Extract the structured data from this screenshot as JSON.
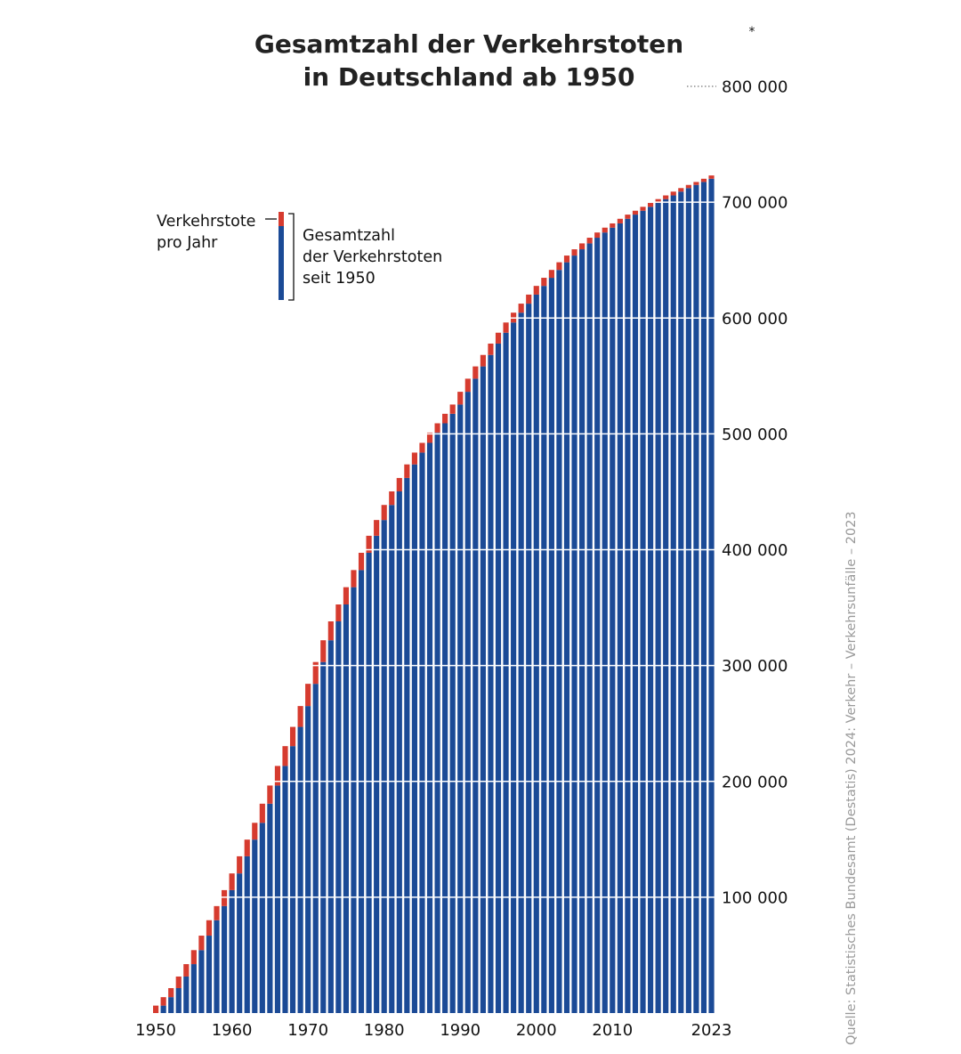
{
  "chart_data": {
    "type": "bar",
    "stacked": true,
    "title_line1": "Gesamtzahl der Verkehrstoten",
    "title_line2": "in Deutschland ab 1950",
    "footnote_mark": "*",
    "x_tick_labels": [
      "1950",
      "1960",
      "1970",
      "1980",
      "1990",
      "2000",
      "2010",
      "2023"
    ],
    "y_tick_labels": [
      "100 000",
      "200 000",
      "300 000",
      "400 000",
      "500 000",
      "600 000",
      "700 000",
      "800 000"
    ],
    "ylim": [
      0,
      800000
    ],
    "grid": true,
    "legend": {
      "annual_label_line1": "Verkehrstote",
      "annual_label_line2": "pro Jahr",
      "cumulative_label_line1": "Gesamtzahl",
      "cumulative_label_line2": "der Verkehrstoten",
      "cumulative_label_line3": "seit 1950"
    },
    "source": "Quelle: Statistisches Bundesamt (Destatis) 2024: Verkehr – Verkehrsunfälle – 2023",
    "years": [
      1950,
      1951,
      1952,
      1953,
      1954,
      1955,
      1956,
      1957,
      1958,
      1959,
      1960,
      1961,
      1962,
      1963,
      1964,
      1965,
      1966,
      1967,
      1968,
      1969,
      1970,
      1971,
      1972,
      1973,
      1974,
      1975,
      1976,
      1977,
      1978,
      1979,
      1980,
      1981,
      1982,
      1983,
      1984,
      1985,
      1986,
      1987,
      1988,
      1989,
      1990,
      1991,
      1992,
      1993,
      1994,
      1995,
      1996,
      1997,
      1998,
      1999,
      2000,
      2001,
      2002,
      2003,
      2004,
      2005,
      2006,
      2007,
      2008,
      2009,
      2010,
      2011,
      2012,
      2013,
      2014,
      2015,
      2016,
      2017,
      2018,
      2019,
      2020,
      2021,
      2022,
      2023
    ],
    "annual_deaths": [
      6428,
      7300,
      7800,
      10000,
      10700,
      12100,
      12500,
      13300,
      12200,
      13800,
      14400,
      14800,
      14400,
      14500,
      16500,
      15700,
      16900,
      17100,
      16600,
      18000,
      19200,
      18800,
      18800,
      16300,
      14600,
      14900,
      14800,
      14900,
      14700,
      13600,
      13000,
      11700,
      11600,
      11700,
      10200,
      8400,
      8900,
      8000,
      8200,
      8000,
      11000,
      11300,
      10600,
      9900,
      9800,
      9400,
      8800,
      8500,
      7800,
      7800,
      7500,
      7000,
      6800,
      6600,
      5800,
      5400,
      5100,
      4900,
      4500,
      4200,
      3650,
      4000,
      3600,
      3340,
      3380,
      3460,
      3200,
      3180,
      3280,
      3050,
      2720,
      2560,
      2790,
      2840
    ],
    "series": [
      {
        "name": "Verkehrstote pro Jahr",
        "color": "#d63b2f"
      },
      {
        "name": "Gesamtzahl der Verkehrstoten seit 1950",
        "color": "#1b4a96"
      }
    ]
  }
}
